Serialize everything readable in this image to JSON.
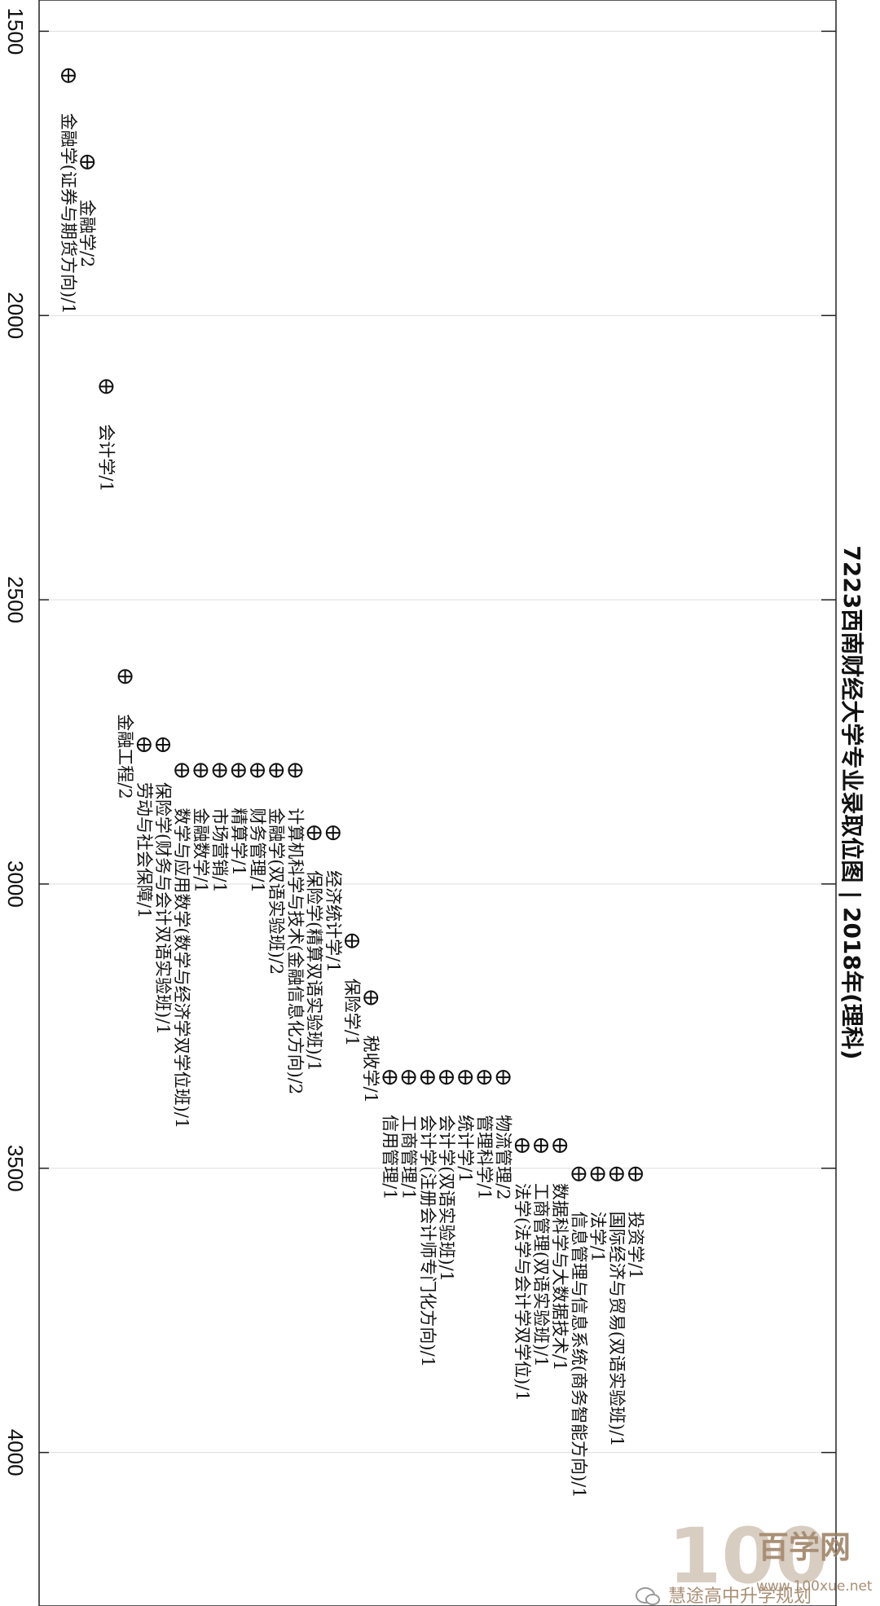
{
  "chart_data": {
    "type": "scatter",
    "title": "7223西南财经大学专业录取位图 | 2018年(理科)",
    "axis": {
      "range": [
        1445,
        4270
      ],
      "ticks": [
        1500,
        2000,
        2500,
        3000,
        3500,
        4000
      ],
      "grid": true
    },
    "points": [
      {
        "label": "金融学(证券与期货方向)/1",
        "rank": 1578,
        "col": 0
      },
      {
        "label": "金融学/2",
        "rank": 1730,
        "col": 1
      },
      {
        "label": "会计学/1",
        "rank": 2125,
        "col": 2
      },
      {
        "label": "金融工程/2",
        "rank": 2635,
        "col": 3
      },
      {
        "label": "劳动与社会保障/1",
        "rank": 2755,
        "col": 4
      },
      {
        "label": "保险学(财务与会计双语实验班)/1",
        "rank": 2755,
        "col": 5
      },
      {
        "label": "数学与应用数学(数学与经济学双学位班)/1",
        "rank": 2800,
        "col": 6
      },
      {
        "label": "金融数学/1",
        "rank": 2800,
        "col": 7
      },
      {
        "label": "市场营销/1",
        "rank": 2800,
        "col": 8
      },
      {
        "label": "精算学/1",
        "rank": 2800,
        "col": 9
      },
      {
        "label": "财务管理/1",
        "rank": 2800,
        "col": 10
      },
      {
        "label": "金融学(双语实验班)/2",
        "rank": 2800,
        "col": 11
      },
      {
        "label": "计算机科学与技术(金融信息化方向)/2",
        "rank": 2800,
        "col": 12
      },
      {
        "label": "保险学(精算双语实验班)/1",
        "rank": 2910,
        "col": 13
      },
      {
        "label": "经济统计学/1",
        "rank": 2910,
        "col": 14
      },
      {
        "label": "保险学/1",
        "rank": 3100,
        "col": 15
      },
      {
        "label": "税收学/1",
        "rank": 3200,
        "col": 16
      },
      {
        "label": "信用管理/1",
        "rank": 3340,
        "col": 17
      },
      {
        "label": "工商管理/1",
        "rank": 3340,
        "col": 18
      },
      {
        "label": "会计学(注册会计师专门化方向)/1",
        "rank": 3340,
        "col": 19
      },
      {
        "label": "会计学(双语实验班)/1",
        "rank": 3340,
        "col": 20
      },
      {
        "label": "统计学/1",
        "rank": 3340,
        "col": 21
      },
      {
        "label": "管理科学/1",
        "rank": 3340,
        "col": 22
      },
      {
        "label": "物流管理/2",
        "rank": 3340,
        "col": 23
      },
      {
        "label": "法学(法学与会计学双学位)/1",
        "rank": 3460,
        "col": 24
      },
      {
        "label": "工商管理(双语实验班)/1",
        "rank": 3460,
        "col": 25
      },
      {
        "label": "数据科学与大数据技术/1",
        "rank": 3460,
        "col": 26
      },
      {
        "label": "信息管理与信息系统(商务智能方向)/1",
        "rank": 3510,
        "col": 27
      },
      {
        "label": "法学/1",
        "rank": 3510,
        "col": 28
      },
      {
        "label": "国际经济与贸易(双语实验班)/1",
        "rank": 3510,
        "col": 29
      },
      {
        "label": "投资学/1",
        "rank": 3510,
        "col": 30
      }
    ]
  },
  "watermark": {
    "brand": "百学网",
    "url": "www.100xue.net",
    "wechat": "慧途高中升学规划",
    "logo_number": "100",
    "color": "#9a7c5e"
  }
}
